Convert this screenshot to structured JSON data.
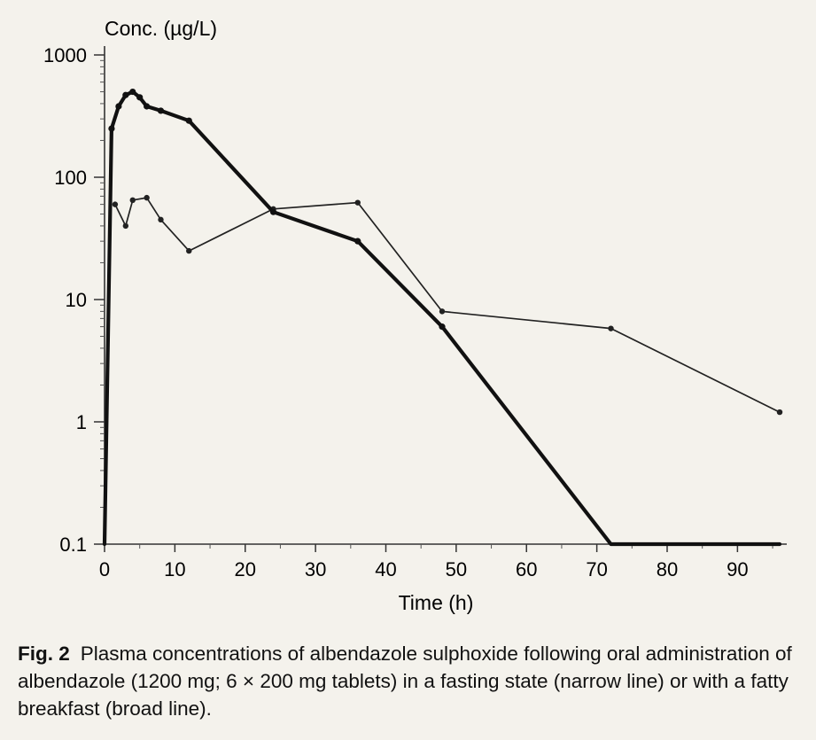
{
  "chart_data": {
    "type": "line",
    "ylabel": "Conc. (µg/L)",
    "xlabel": "Time (h)",
    "yscale": "log",
    "ylim": [
      0.1,
      1000
    ],
    "xlim": [
      0,
      96
    ],
    "y_tick_values": [
      0.1,
      1,
      10,
      100,
      1000
    ],
    "y_tick_labels": [
      "0.1",
      "1",
      "10",
      "100",
      "1000"
    ],
    "x_tick_values": [
      0,
      10,
      20,
      30,
      40,
      50,
      60,
      70,
      80,
      90
    ],
    "x_tick_labels": [
      "0",
      "10",
      "20",
      "30",
      "40",
      "50",
      "60",
      "70",
      "80",
      "90"
    ],
    "grid": false,
    "series": [
      {
        "style": "narrow line",
        "color": "#222222",
        "x": [
          1.5,
          3,
          4,
          6,
          8,
          12,
          24,
          36,
          48,
          72,
          96
        ],
        "y": [
          60,
          40,
          65,
          68,
          45,
          25,
          55,
          62,
          8,
          5.8,
          1.2
        ]
      },
      {
        "style": "broad line",
        "color": "#111111",
        "x": [
          0,
          1,
          2,
          3,
          4,
          5,
          6,
          8,
          12,
          24,
          36,
          48,
          72,
          96
        ],
        "y": [
          0.1,
          250,
          380,
          470,
          500,
          450,
          380,
          350,
          290,
          52,
          30,
          6,
          0.1,
          0.1
        ]
      }
    ]
  },
  "caption": {
    "label": "Fig. 2",
    "text": "Plasma concentrations of albendazole sulphoxide following oral administration of albendazole (1200 mg; 6 × 200 mg tablets) in a fasting state (narrow line) or with a fatty breakfast (broad line)."
  }
}
